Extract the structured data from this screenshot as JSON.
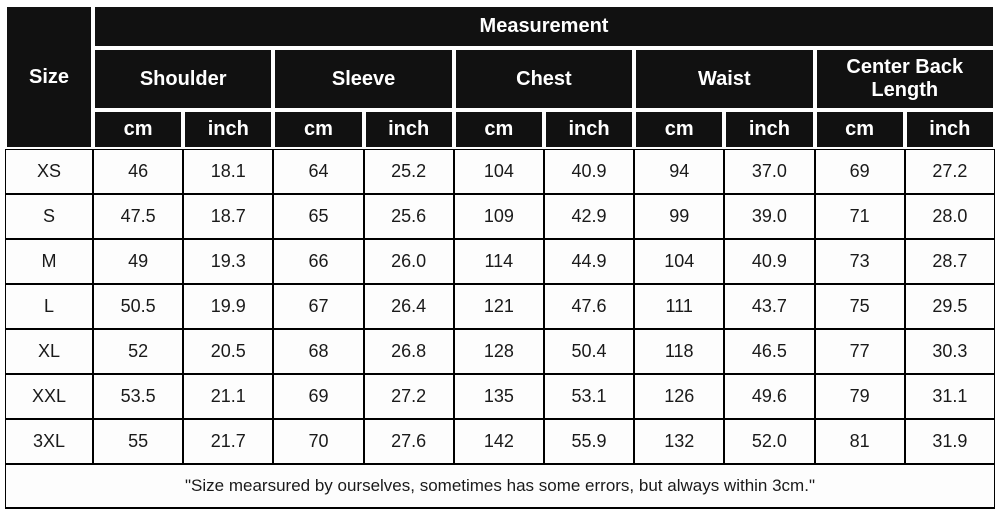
{
  "table": {
    "size_header": "Size",
    "measurement_header": "Measurement",
    "groups": [
      {
        "label": "Shoulder"
      },
      {
        "label": "Sleeve"
      },
      {
        "label": "Chest"
      },
      {
        "label": "Waist"
      },
      {
        "label": "Center Back Length"
      }
    ],
    "unit_headers": [
      "cm",
      "inch"
    ],
    "rows": [
      {
        "size": "XS",
        "values": [
          "46",
          "18.1",
          "64",
          "25.2",
          "104",
          "40.9",
          "94",
          "37.0",
          "69",
          "27.2"
        ]
      },
      {
        "size": "S",
        "values": [
          "47.5",
          "18.7",
          "65",
          "25.6",
          "109",
          "42.9",
          "99",
          "39.0",
          "71",
          "28.0"
        ]
      },
      {
        "size": "M",
        "values": [
          "49",
          "19.3",
          "66",
          "26.0",
          "114",
          "44.9",
          "104",
          "40.9",
          "73",
          "28.7"
        ]
      },
      {
        "size": "L",
        "values": [
          "50.5",
          "19.9",
          "67",
          "26.4",
          "121",
          "47.6",
          "111",
          "43.7",
          "75",
          "29.5"
        ]
      },
      {
        "size": "XL",
        "values": [
          "52",
          "20.5",
          "68",
          "26.8",
          "128",
          "50.4",
          "118",
          "46.5",
          "77",
          "30.3"
        ]
      },
      {
        "size": "XXL",
        "values": [
          "53.5",
          "21.1",
          "69",
          "27.2",
          "135",
          "53.1",
          "126",
          "49.6",
          "79",
          "31.1"
        ]
      },
      {
        "size": "3XL",
        "values": [
          "55",
          "21.7",
          "70",
          "27.6",
          "142",
          "55.9",
          "132",
          "52.0",
          "81",
          "31.9"
        ]
      }
    ],
    "footnote": "\"Size mearsured by ourselves, sometimes has some errors, but always within 3cm.\"",
    "colors": {
      "header_bg": "#111111",
      "header_text": "#ffffff",
      "cell_bg": "#fdfdfd",
      "cell_text": "#1a1a1a",
      "border": "#000000"
    }
  }
}
